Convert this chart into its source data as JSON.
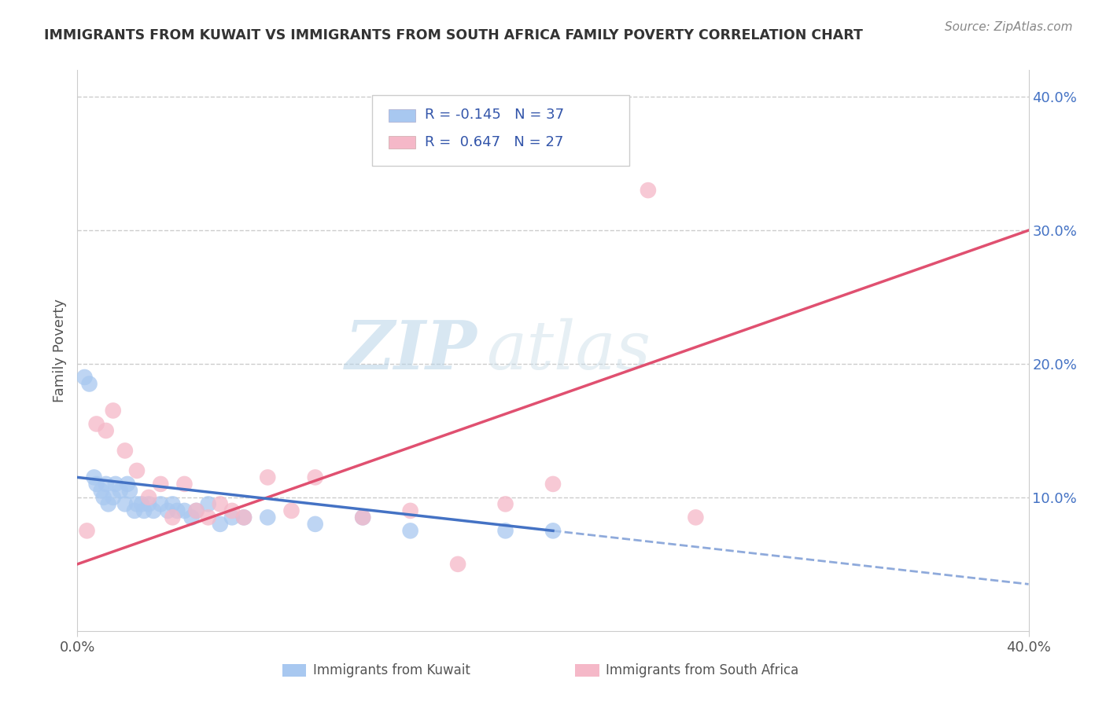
{
  "title": "IMMIGRANTS FROM KUWAIT VS IMMIGRANTS FROM SOUTH AFRICA FAMILY POVERTY CORRELATION CHART",
  "source": "Source: ZipAtlas.com",
  "ylabel": "Family Poverty",
  "x_range": [
    0,
    40
  ],
  "y_range": [
    0,
    42
  ],
  "kuwait_color": "#a8c8f0",
  "south_africa_color": "#f5b8c8",
  "kuwait_line_color": "#4472c4",
  "south_africa_line_color": "#e05070",
  "kuwait_points_x": [
    0.3,
    0.5,
    0.7,
    0.8,
    1.0,
    1.1,
    1.2,
    1.3,
    1.5,
    1.6,
    1.8,
    2.0,
    2.1,
    2.2,
    2.4,
    2.5,
    2.7,
    2.8,
    3.0,
    3.2,
    3.5,
    3.8,
    4.0,
    4.2,
    4.5,
    4.8,
    5.0,
    5.5,
    6.0,
    6.5,
    7.0,
    8.0,
    10.0,
    12.0,
    14.0,
    18.0,
    20.0
  ],
  "kuwait_points_y": [
    19.0,
    18.5,
    11.5,
    11.0,
    10.5,
    10.0,
    11.0,
    9.5,
    10.0,
    11.0,
    10.5,
    9.5,
    11.0,
    10.5,
    9.0,
    9.5,
    9.5,
    9.0,
    9.5,
    9.0,
    9.5,
    9.0,
    9.5,
    9.0,
    9.0,
    8.5,
    9.0,
    9.5,
    8.0,
    8.5,
    8.5,
    8.5,
    8.0,
    8.5,
    7.5,
    7.5,
    7.5
  ],
  "south_africa_points_x": [
    0.4,
    0.8,
    1.2,
    1.5,
    2.0,
    2.5,
    3.0,
    3.5,
    4.0,
    4.5,
    5.0,
    5.5,
    6.0,
    6.5,
    7.0,
    8.0,
    9.0,
    10.0,
    12.0,
    14.0,
    16.0,
    18.0,
    20.0,
    24.0,
    26.0
  ],
  "south_africa_points_y": [
    7.5,
    15.5,
    15.0,
    16.5,
    13.5,
    12.0,
    10.0,
    11.0,
    8.5,
    11.0,
    9.0,
    8.5,
    9.5,
    9.0,
    8.5,
    11.5,
    9.0,
    11.5,
    8.5,
    9.0,
    5.0,
    9.5,
    11.0,
    33.0,
    8.5
  ],
  "watermark_zip": "ZIP",
  "watermark_atlas": "atlas",
  "background_color": "#ffffff",
  "grid_color": "#cccccc",
  "title_color": "#333333",
  "axis_label_color": "#555555",
  "right_axis_color": "#4472c4",
  "sa_line_x0": 0,
  "sa_line_y0": 5.0,
  "sa_line_x1": 40,
  "sa_line_y1": 30.0,
  "kw_line_x0": 0,
  "kw_line_y0": 11.5,
  "kw_line_x1": 20,
  "kw_line_y1": 7.5
}
